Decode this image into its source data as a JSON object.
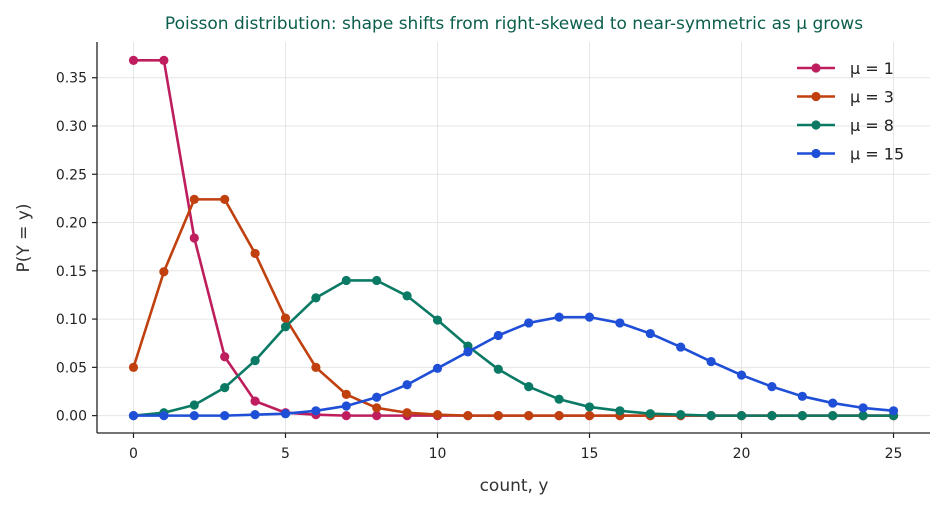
{
  "chart_data": {
    "type": "line",
    "title": "Poisson distribution: shape shifts from right-skewed to near-symmetric as μ grows",
    "xlabel": "count, y",
    "ylabel": "P(Y = y)",
    "xlim": [
      -1.2,
      26.2
    ],
    "ylim": [
      -0.018,
      0.387
    ],
    "xticks": [
      0,
      5,
      10,
      15,
      20,
      25
    ],
    "yticks": [
      0.0,
      0.05,
      0.1,
      0.15,
      0.2,
      0.25,
      0.3,
      0.35
    ],
    "ytick_labels": [
      "0.00",
      "0.05",
      "0.10",
      "0.15",
      "0.20",
      "0.25",
      "0.30",
      "0.35"
    ],
    "grid": true,
    "legend_position": "top-right",
    "x": [
      0,
      1,
      2,
      3,
      4,
      5,
      6,
      7,
      8,
      9,
      10,
      11,
      12,
      13,
      14,
      15,
      16,
      17,
      18,
      19,
      20,
      21,
      22,
      23,
      24,
      25
    ],
    "series": [
      {
        "name": "μ = 1",
        "color": "#be1e5e",
        "values": [
          0.368,
          0.368,
          0.184,
          0.061,
          0.015,
          0.003,
          0.001,
          0.0,
          0.0,
          0.0,
          0.0,
          0.0,
          0.0,
          0.0,
          0.0,
          0.0,
          0.0,
          0.0,
          0.0,
          0.0,
          0.0,
          0.0,
          0.0,
          0.0,
          0.0,
          0.0
        ]
      },
      {
        "name": "μ = 3",
        "color": "#c0410f",
        "values": [
          0.05,
          0.149,
          0.224,
          0.224,
          0.168,
          0.101,
          0.05,
          0.022,
          0.008,
          0.003,
          0.001,
          0.0,
          0.0,
          0.0,
          0.0,
          0.0,
          0.0,
          0.0,
          0.0,
          0.0,
          0.0,
          0.0,
          0.0,
          0.0,
          0.0,
          0.0
        ]
      },
      {
        "name": "μ = 8",
        "color": "#0b7a65",
        "values": [
          0.0,
          0.003,
          0.011,
          0.029,
          0.057,
          0.092,
          0.122,
          0.14,
          0.14,
          0.124,
          0.099,
          0.072,
          0.048,
          0.03,
          0.017,
          0.009,
          0.005,
          0.002,
          0.001,
          0.0,
          0.0,
          0.0,
          0.0,
          0.0,
          0.0,
          0.0
        ]
      },
      {
        "name": "μ = 15",
        "color": "#1f4fd6",
        "values": [
          0.0,
          0.0,
          0.0,
          0.0,
          0.001,
          0.002,
          0.005,
          0.01,
          0.019,
          0.032,
          0.049,
          0.066,
          0.083,
          0.096,
          0.102,
          0.102,
          0.096,
          0.085,
          0.071,
          0.056,
          0.042,
          0.03,
          0.02,
          0.013,
          0.008,
          0.005
        ]
      }
    ]
  }
}
